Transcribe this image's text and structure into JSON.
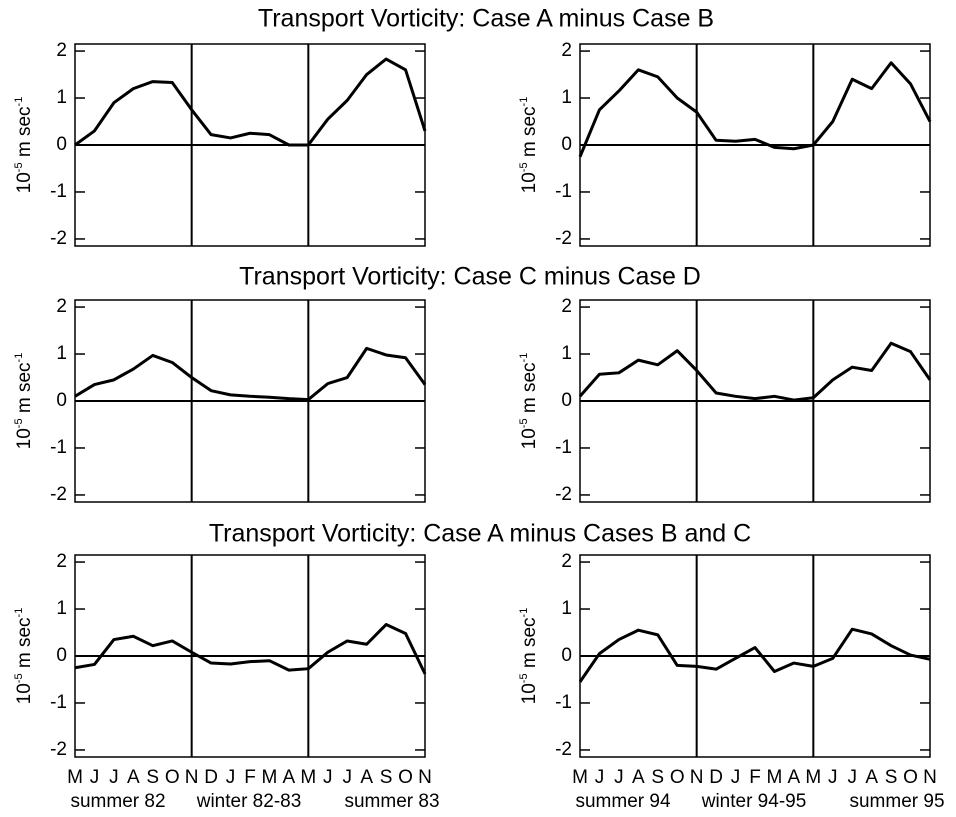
{
  "row_titles": [
    "Transport Vorticity: Case A minus Case B",
    "Transport Vorticity: Case C minus Case D",
    "Transport Vorticity: Case A minus Cases B and C"
  ],
  "chart_data": [
    {
      "type": "line",
      "values": [
        0,
        0.3,
        0.9,
        1.2,
        1.35,
        1.33,
        0.75,
        0.22,
        0.15,
        0.25,
        0.22,
        0.0,
        0.0,
        0.55,
        0.95,
        1.5,
        1.83,
        1.6,
        0.3
      ],
      "color": "#000000",
      "ylim": [
        -2.15,
        2.15
      ],
      "yticks": [
        -2,
        -1,
        0,
        1,
        2
      ],
      "ylabel": [
        "10",
        "-5",
        " m sec",
        "-1"
      ],
      "hline": 0,
      "vlines": [
        6,
        12
      ]
    },
    {
      "type": "line",
      "values": [
        -0.25,
        0.75,
        1.15,
        1.6,
        1.45,
        1.0,
        0.7,
        0.1,
        0.08,
        0.12,
        -0.05,
        -0.08,
        0.0,
        0.5,
        1.4,
        1.2,
        1.75,
        1.3,
        0.5
      ],
      "color": "#000000",
      "ylim": [
        -2.15,
        2.15
      ],
      "yticks": [
        -2,
        -1,
        0,
        1,
        2
      ],
      "ylabel": [
        "10",
        "-5",
        " m sec",
        "-1"
      ],
      "hline": 0,
      "vlines": [
        6,
        12
      ]
    },
    {
      "type": "line",
      "values": [
        0.1,
        0.35,
        0.45,
        0.68,
        0.97,
        0.82,
        0.5,
        0.22,
        0.13,
        0.1,
        0.08,
        0.05,
        0.03,
        0.37,
        0.5,
        1.12,
        0.98,
        0.92,
        0.35
      ],
      "color": "#000000",
      "ylim": [
        -2.15,
        2.15
      ],
      "yticks": [
        -2,
        -1,
        0,
        1,
        2
      ],
      "ylabel": [
        "10",
        "-5",
        " m sec",
        "-1"
      ],
      "hline": 0,
      "vlines": [
        6,
        12
      ]
    },
    {
      "type": "line",
      "values": [
        0.1,
        0.57,
        0.6,
        0.87,
        0.77,
        1.07,
        0.65,
        0.17,
        0.1,
        0.05,
        0.1,
        0.02,
        0.07,
        0.45,
        0.72,
        0.65,
        1.23,
        1.05,
        0.45
      ],
      "color": "#000000",
      "ylim": [
        -2.15,
        2.15
      ],
      "yticks": [
        -2,
        -1,
        0,
        1,
        2
      ],
      "ylabel": [
        "10",
        "-5",
        " m sec",
        "-1"
      ],
      "hline": 0,
      "vlines": [
        6,
        12
      ]
    },
    {
      "type": "line",
      "values": [
        -0.25,
        -0.18,
        0.35,
        0.42,
        0.22,
        0.32,
        0.08,
        -0.15,
        -0.17,
        -0.12,
        -0.1,
        -0.3,
        -0.27,
        0.08,
        0.32,
        0.25,
        0.67,
        0.48,
        -0.38
      ],
      "color": "#000000",
      "ylim": [
        -2.15,
        2.15
      ],
      "yticks": [
        -2,
        -1,
        0,
        1,
        2
      ],
      "ylabel": [
        "10",
        "-5",
        " m sec",
        "-1"
      ],
      "hline": 0,
      "vlines": [
        6,
        12
      ],
      "categories": [
        "M",
        "J",
        "J",
        "A",
        "S",
        "O",
        "N",
        "D",
        "J",
        "F",
        "M",
        "A",
        "M",
        "J",
        "J",
        "A",
        "S",
        "O",
        "N"
      ],
      "periods": [
        "summer 82",
        "winter 82-83",
        "summer 83"
      ]
    },
    {
      "type": "line",
      "values": [
        -0.55,
        0.05,
        0.35,
        0.55,
        0.45,
        -0.2,
        -0.22,
        -0.28,
        -0.05,
        0.18,
        -0.33,
        -0.15,
        -0.22,
        -0.05,
        0.57,
        0.47,
        0.22,
        0.02,
        -0.07
      ],
      "color": "#000000",
      "ylim": [
        -2.15,
        2.15
      ],
      "yticks": [
        -2,
        -1,
        0,
        1,
        2
      ],
      "ylabel": [
        "10",
        "-5",
        " m sec",
        "-1"
      ],
      "hline": 0,
      "vlines": [
        6,
        12
      ],
      "categories": [
        "M",
        "J",
        "J",
        "A",
        "S",
        "O",
        "N",
        "D",
        "J",
        "F",
        "M",
        "A",
        "M",
        "J",
        "J",
        "A",
        "S",
        "O",
        "N"
      ],
      "periods": [
        "summer 94",
        "winter 94-95",
        "summer 95"
      ]
    }
  ]
}
